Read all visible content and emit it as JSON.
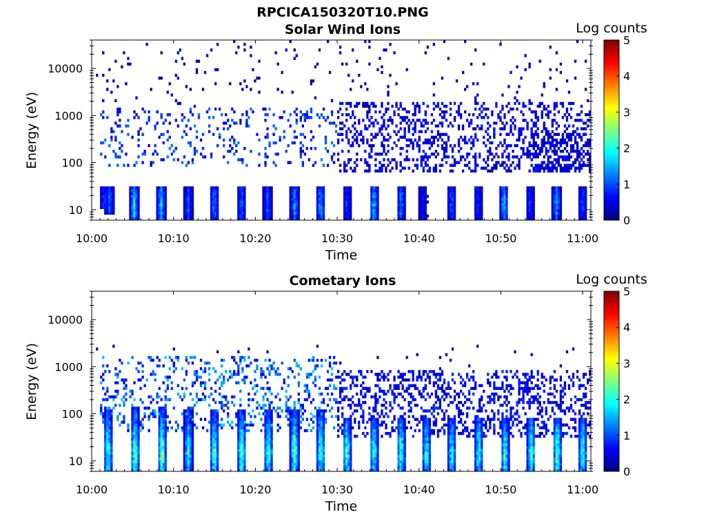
{
  "figure_title": "RPCICA150320T10.PNG",
  "colormap": [
    "#00007f",
    "#0000ff",
    "#007fff",
    "#00ffff",
    "#7fff7f",
    "#ffff00",
    "#ff7f00",
    "#ff0000",
    "#7f0000"
  ],
  "chart_data": [
    {
      "type": "heatmap",
      "title": "Solar Wind Ions",
      "xlabel": "Time",
      "ylabel": "Energy (eV)",
      "x_ticks": [
        "10:00",
        "10:10",
        "10:20",
        "10:30",
        "10:40",
        "10:50",
        "11:00"
      ],
      "x_tick_minutes": [
        0,
        10,
        20,
        30,
        40,
        50,
        60
      ],
      "x_range_minutes": [
        0,
        61
      ],
      "y_scale": "log",
      "y_ticks": [
        "10",
        "100",
        "1000",
        "10000"
      ],
      "y_tick_values": [
        10,
        100,
        1000,
        10000
      ],
      "y_range": [
        6,
        40000
      ],
      "colorbar": {
        "label": "Log counts",
        "ticks": [
          "0",
          "1",
          "2",
          "3",
          "4",
          "5"
        ],
        "range": [
          0,
          5
        ]
      },
      "bursts": [
        {
          "t": 1.5,
          "lo": 10,
          "hi": 30,
          "peak": 1.0
        },
        {
          "t": 2.2,
          "lo": 8,
          "hi": 30,
          "peak": 1.3
        },
        {
          "t": 5.2,
          "lo": 6,
          "hi": 30,
          "peak": 2.0
        },
        {
          "t": 8.5,
          "lo": 6,
          "hi": 30,
          "peak": 1.8
        },
        {
          "t": 11.8,
          "lo": 6,
          "hi": 30,
          "peak": 1.2
        },
        {
          "t": 15.0,
          "lo": 6,
          "hi": 30,
          "peak": 1.4
        },
        {
          "t": 18.3,
          "lo": 6,
          "hi": 30,
          "peak": 1.3
        },
        {
          "t": 21.5,
          "lo": 6,
          "hi": 30,
          "peak": 1.2
        },
        {
          "t": 24.8,
          "lo": 6,
          "hi": 30,
          "peak": 1.5
        },
        {
          "t": 28.0,
          "lo": 6,
          "hi": 30,
          "peak": 1.6
        },
        {
          "t": 31.2,
          "lo": 6,
          "hi": 30,
          "peak": 1.0
        },
        {
          "t": 34.5,
          "lo": 6,
          "hi": 30,
          "peak": 1.7
        },
        {
          "t": 37.8,
          "lo": 6,
          "hi": 30,
          "peak": 1.4
        },
        {
          "t": 40.5,
          "lo": 6,
          "hi": 30,
          "peak": 0.8
        },
        {
          "t": 44.0,
          "lo": 6,
          "hi": 30,
          "peak": 1.2
        },
        {
          "t": 47.2,
          "lo": 6,
          "hi": 30,
          "peak": 0.9
        },
        {
          "t": 50.4,
          "lo": 6,
          "hi": 30,
          "peak": 1.7
        },
        {
          "t": 53.6,
          "lo": 6,
          "hi": 30,
          "peak": 1.0
        },
        {
          "t": 56.8,
          "lo": 6,
          "hi": 30,
          "peak": 1.6
        },
        {
          "t": 60.0,
          "lo": 6,
          "hi": 30,
          "peak": 1.1
        }
      ],
      "clouds": [
        {
          "t0": 1,
          "t1": 30,
          "lo": 80,
          "hi": 1500,
          "density": 0.14,
          "peak": 1.0
        },
        {
          "t0": 30,
          "t1": 61,
          "lo": 60,
          "hi": 2000,
          "density": 0.3,
          "peak": 0.6
        },
        {
          "t0": 0,
          "t1": 61,
          "lo": 1500,
          "hi": 40000,
          "density": 0.045,
          "peak": 0.3
        },
        {
          "t0": 54,
          "t1": 61,
          "lo": 60,
          "hi": 400,
          "density": 0.45,
          "peak": 0.5
        }
      ],
      "seed": 7
    },
    {
      "type": "heatmap",
      "title": "Cometary Ions",
      "xlabel": "Time",
      "ylabel": "Energy (eV)",
      "x_ticks": [
        "10:00",
        "10:10",
        "10:20",
        "10:30",
        "10:40",
        "10:50",
        "11:00"
      ],
      "x_tick_minutes": [
        0,
        10,
        20,
        30,
        40,
        50,
        60
      ],
      "x_range_minutes": [
        0,
        61
      ],
      "y_scale": "log",
      "y_ticks": [
        "10",
        "100",
        "1000",
        "10000"
      ],
      "y_tick_values": [
        10,
        100,
        1000,
        10000
      ],
      "y_range": [
        6,
        40000
      ],
      "colorbar": {
        "label": "Log counts",
        "ticks": [
          "0",
          "1",
          "2",
          "3",
          "4",
          "5"
        ],
        "range": [
          0,
          5
        ]
      },
      "bursts": [
        {
          "t": 2.0,
          "lo": 6,
          "hi": 120,
          "peak": 2.6
        },
        {
          "t": 5.3,
          "lo": 6,
          "hi": 150,
          "peak": 2.8
        },
        {
          "t": 8.6,
          "lo": 6,
          "hi": 150,
          "peak": 2.9
        },
        {
          "t": 11.8,
          "lo": 6,
          "hi": 120,
          "peak": 2.4
        },
        {
          "t": 15.0,
          "lo": 6,
          "hi": 120,
          "peak": 2.7
        },
        {
          "t": 18.3,
          "lo": 6,
          "hi": 130,
          "peak": 2.8
        },
        {
          "t": 21.6,
          "lo": 6,
          "hi": 120,
          "peak": 2.6
        },
        {
          "t": 24.8,
          "lo": 6,
          "hi": 120,
          "peak": 2.9
        },
        {
          "t": 28.0,
          "lo": 6,
          "hi": 130,
          "peak": 2.7
        },
        {
          "t": 31.2,
          "lo": 6,
          "hi": 80,
          "peak": 2.6
        },
        {
          "t": 34.5,
          "lo": 6,
          "hi": 80,
          "peak": 2.5
        },
        {
          "t": 37.8,
          "lo": 6,
          "hi": 80,
          "peak": 2.6
        },
        {
          "t": 40.9,
          "lo": 6,
          "hi": 80,
          "peak": 2.4
        },
        {
          "t": 44.0,
          "lo": 6,
          "hi": 80,
          "peak": 2.3
        },
        {
          "t": 47.3,
          "lo": 6,
          "hi": 80,
          "peak": 2.5
        },
        {
          "t": 50.5,
          "lo": 6,
          "hi": 80,
          "peak": 2.5
        },
        {
          "t": 53.7,
          "lo": 6,
          "hi": 80,
          "peak": 2.6
        },
        {
          "t": 56.9,
          "lo": 6,
          "hi": 80,
          "peak": 2.8
        },
        {
          "t": 60.0,
          "lo": 6,
          "hi": 80,
          "peak": 2.5
        }
      ],
      "clouds": [
        {
          "t0": 1,
          "t1": 30,
          "lo": 40,
          "hi": 1800,
          "density": 0.2,
          "peak": 1.3
        },
        {
          "t0": 30,
          "t1": 61,
          "lo": 30,
          "hi": 900,
          "density": 0.32,
          "peak": 0.7
        },
        {
          "t0": 0,
          "t1": 61,
          "lo": 900,
          "hi": 3000,
          "density": 0.02,
          "peak": 0.3
        }
      ],
      "seed": 13
    }
  ]
}
